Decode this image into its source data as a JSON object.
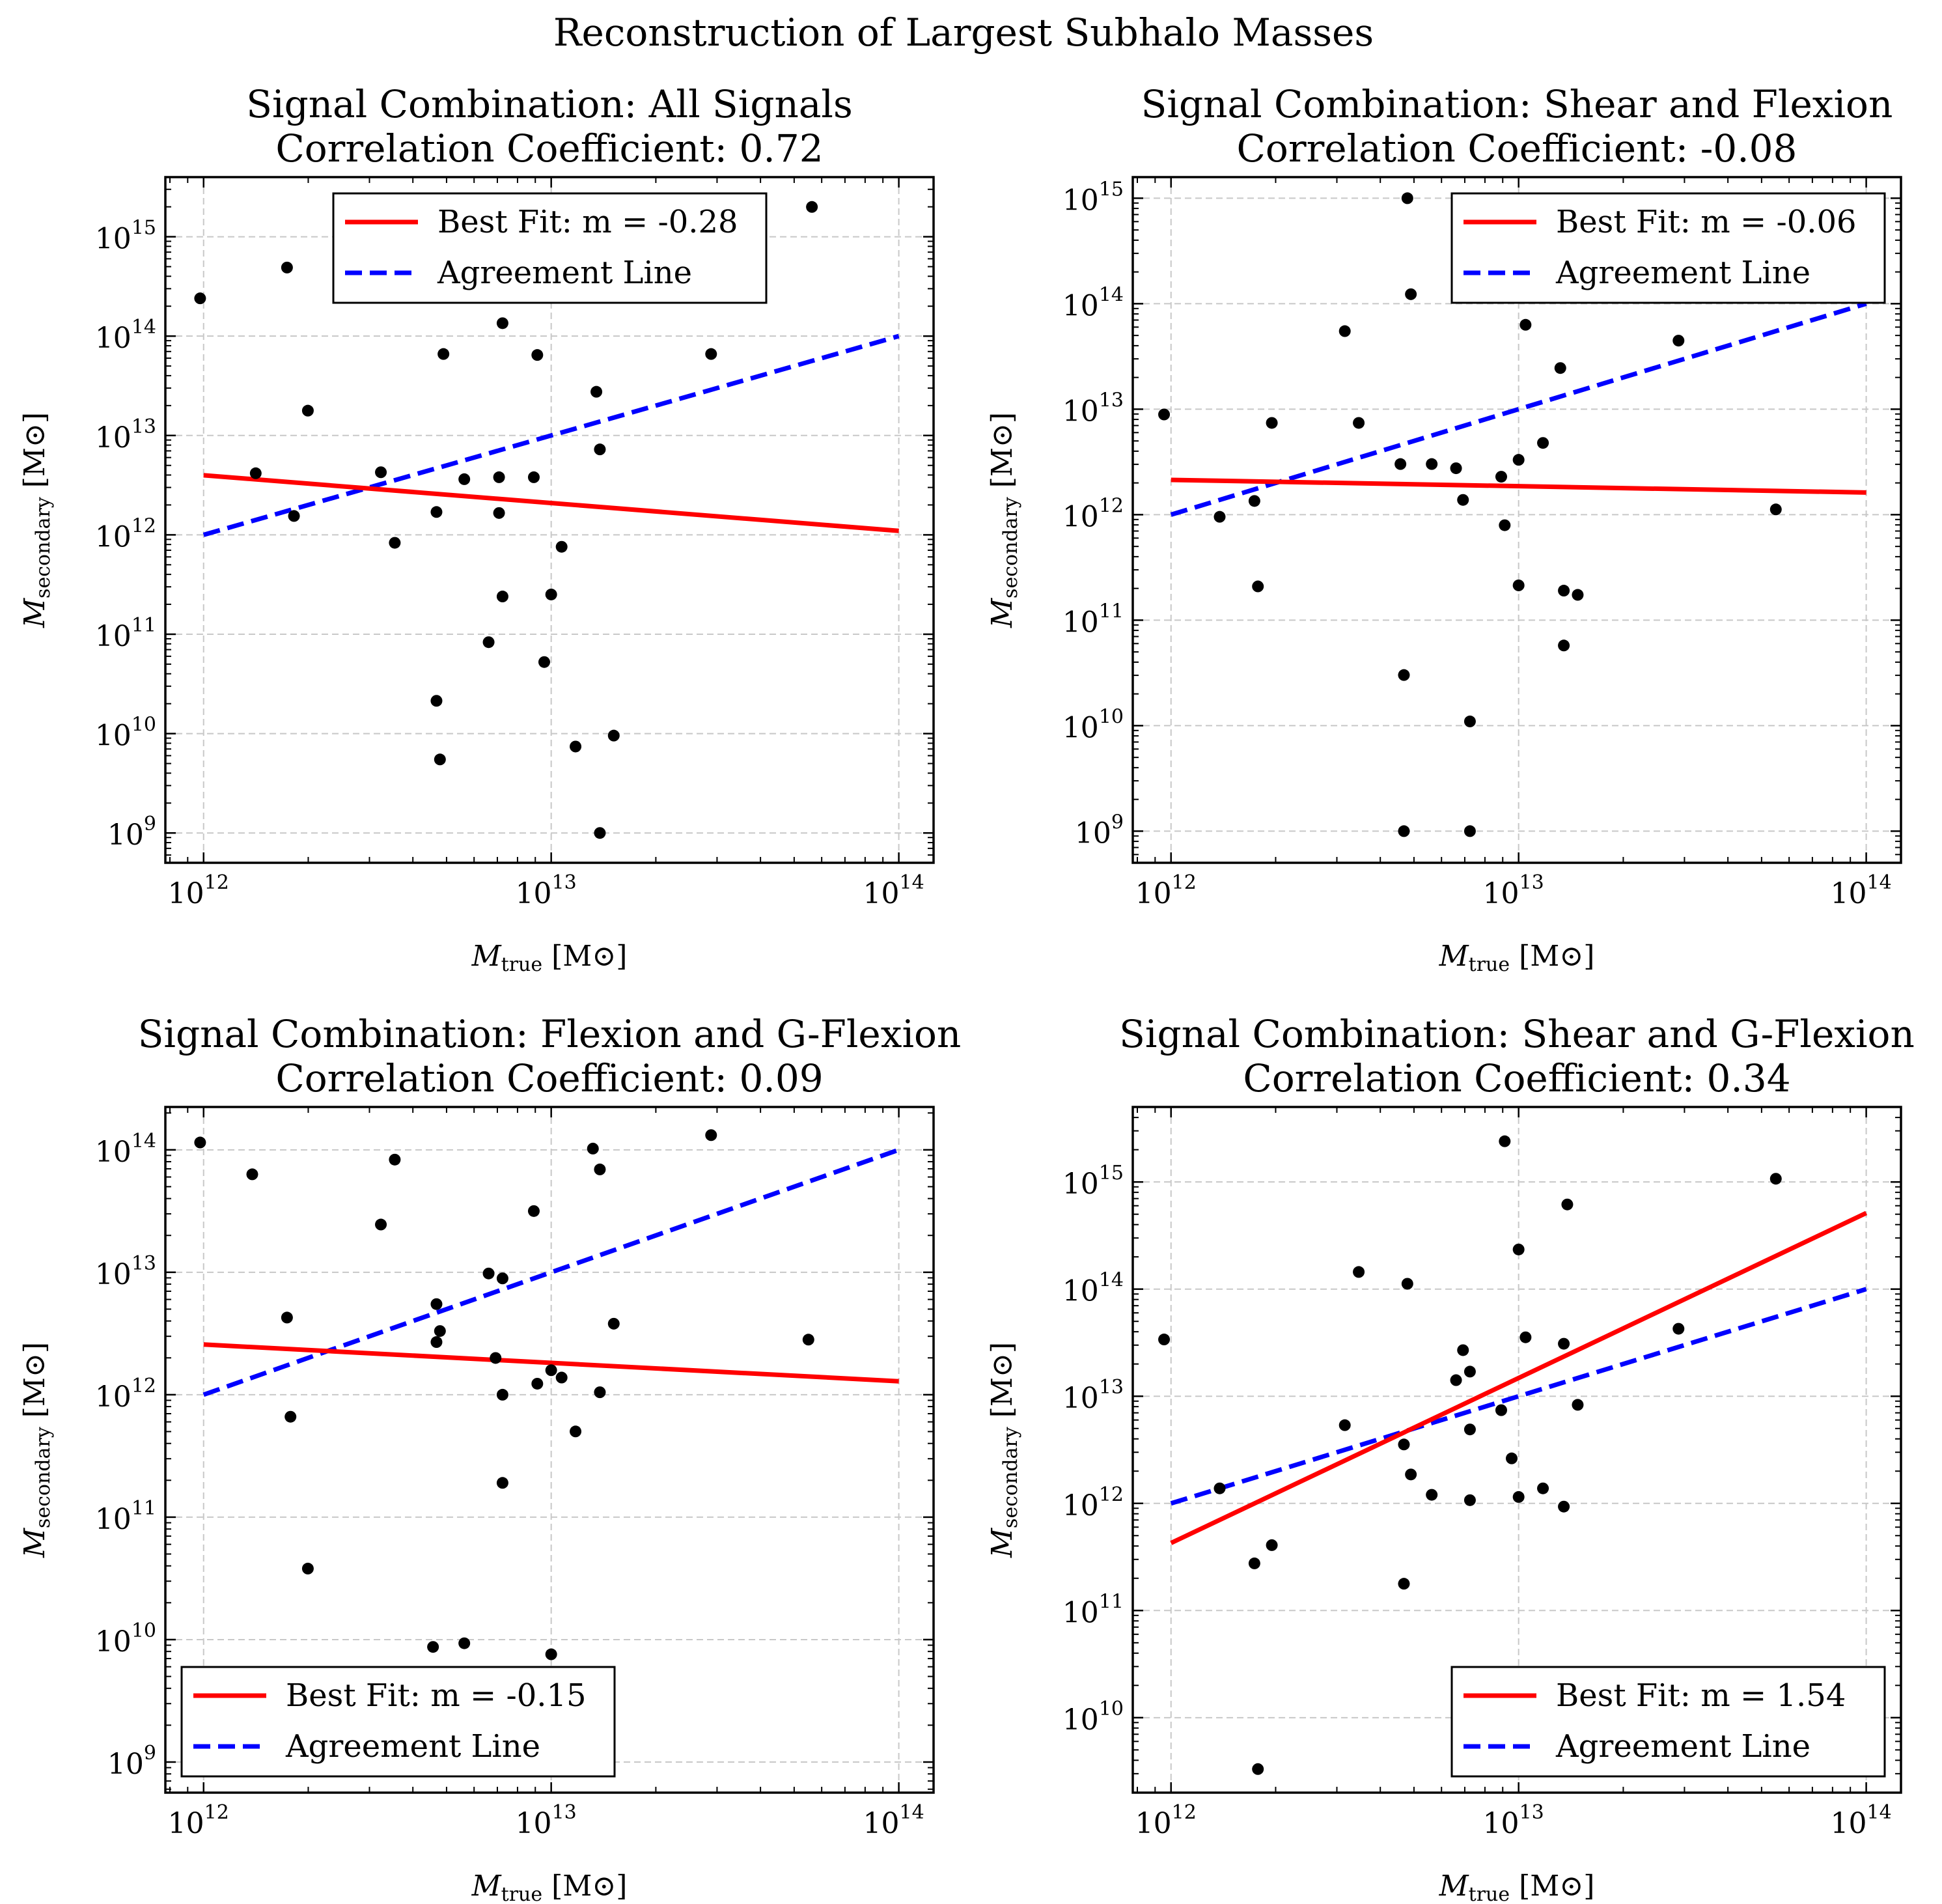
{
  "figure_title": "Reconstruction of Largest Subhalo Masses",
  "chart_data": [
    {
      "type": "scatter",
      "title_line1": "Signal Combination: All Signals",
      "title_line2": "Correlation Coefficient: 0.72",
      "xlabel_main": "M",
      "xlabel_sub": "true",
      "xlabel_unit": "[M⊙]",
      "ylabel_main": "M",
      "ylabel_sub": "secondary",
      "ylabel_unit": "[M⊙]",
      "xscale": "log",
      "yscale": "log",
      "xlim_log10": [
        11.89,
        14.1
      ],
      "ylim_log10": [
        8.7,
        15.6
      ],
      "xticks": [
        12,
        13,
        14
      ],
      "yticks": [
        9,
        10,
        11,
        12,
        13,
        14,
        15
      ],
      "legend_location": "upper center",
      "legend": [
        {
          "label": "Best Fit: m = -0.28",
          "style": "solid",
          "color": "#ff0000"
        },
        {
          "label": "Agreement Line",
          "style": "dashed",
          "color": "#0000ff"
        }
      ],
      "fit_line_log10": [
        [
          12,
          12.6
        ],
        [
          14,
          12.04
        ]
      ],
      "agreement_line_log10": [
        [
          12,
          12
        ],
        [
          14,
          14
        ]
      ],
      "points_log10": [
        [
          11.99,
          14.38
        ],
        [
          12.15,
          12.62
        ],
        [
          12.24,
          14.69
        ],
        [
          12.26,
          12.19
        ],
        [
          12.3,
          13.25
        ],
        [
          12.51,
          12.63
        ],
        [
          12.55,
          11.92
        ],
        [
          12.67,
          12.23
        ],
        [
          12.67,
          10.33
        ],
        [
          12.68,
          9.74
        ],
        [
          12.69,
          13.82
        ],
        [
          12.75,
          12.56
        ],
        [
          12.82,
          10.92
        ],
        [
          12.85,
          12.22
        ],
        [
          12.85,
          12.58
        ],
        [
          12.86,
          14.13
        ],
        [
          12.86,
          11.38
        ],
        [
          12.95,
          12.58
        ],
        [
          12.96,
          13.81
        ],
        [
          12.98,
          10.72
        ],
        [
          13.0,
          11.4
        ],
        [
          13.03,
          11.88
        ],
        [
          13.07,
          9.87
        ],
        [
          13.13,
          13.44
        ],
        [
          13.14,
          12.86
        ],
        [
          13.14,
          9.0
        ],
        [
          13.18,
          9.98
        ],
        [
          13.46,
          13.82
        ],
        [
          13.75,
          15.3
        ]
      ]
    },
    {
      "type": "scatter",
      "title_line1": "Signal Combination: Shear and Flexion",
      "title_line2": "Correlation Coefficient: -0.08",
      "xlabel_main": "M",
      "xlabel_sub": "true",
      "xlabel_unit": "[M⊙]",
      "ylabel_main": "M",
      "ylabel_sub": "secondary",
      "ylabel_unit": "[M⊙]",
      "xscale": "log",
      "yscale": "log",
      "xlim_log10": [
        11.89,
        14.1
      ],
      "ylim_log10": [
        8.7,
        15.2
      ],
      "xticks": [
        12,
        13,
        14
      ],
      "yticks": [
        9,
        10,
        11,
        12,
        13,
        14,
        15
      ],
      "legend_location": "upper right",
      "legend": [
        {
          "label": "Best Fit: m = -0.06",
          "style": "solid",
          "color": "#ff0000"
        },
        {
          "label": "Agreement Line",
          "style": "dashed",
          "color": "#0000ff"
        }
      ],
      "fit_line_log10": [
        [
          12,
          12.33
        ],
        [
          14,
          12.21
        ]
      ],
      "agreement_line_log10": [
        [
          12,
          12
        ],
        [
          14,
          14
        ]
      ],
      "points_log10": [
        [
          11.98,
          12.95
        ],
        [
          12.14,
          11.98
        ],
        [
          12.24,
          12.13
        ],
        [
          12.25,
          11.32
        ],
        [
          12.29,
          12.87
        ],
        [
          12.5,
          13.74
        ],
        [
          12.54,
          12.87
        ],
        [
          12.66,
          12.48
        ],
        [
          12.67,
          10.48
        ],
        [
          12.67,
          9.0
        ],
        [
          12.68,
          15.0
        ],
        [
          12.69,
          14.09
        ],
        [
          12.75,
          12.48
        ],
        [
          12.82,
          12.44
        ],
        [
          12.84,
          12.14
        ],
        [
          12.86,
          14.08
        ],
        [
          12.86,
          10.04
        ],
        [
          12.86,
          9.0
        ],
        [
          12.95,
          12.36
        ],
        [
          12.96,
          11.9
        ],
        [
          13.0,
          12.52
        ],
        [
          13.0,
          11.33
        ],
        [
          13.02,
          13.8
        ],
        [
          13.07,
          12.68
        ],
        [
          13.12,
          13.39
        ],
        [
          13.13,
          11.28
        ],
        [
          13.13,
          10.76
        ],
        [
          13.17,
          11.24
        ],
        [
          13.46,
          13.65
        ],
        [
          13.74,
          12.05
        ]
      ]
    },
    {
      "type": "scatter",
      "title_line1": "Signal Combination: Flexion and G-Flexion",
      "title_line2": "Correlation Coefficient: 0.09",
      "xlabel_main": "M",
      "xlabel_sub": "true",
      "xlabel_unit": "[M⊙]",
      "ylabel_main": "M",
      "ylabel_sub": "secondary",
      "ylabel_unit": "[M⊙]",
      "xscale": "log",
      "yscale": "log",
      "xlim_log10": [
        11.89,
        14.1
      ],
      "ylim_log10": [
        8.75,
        14.35
      ],
      "xticks": [
        12,
        13,
        14
      ],
      "yticks": [
        9,
        10,
        11,
        12,
        13,
        14
      ],
      "legend_location": "lower left",
      "legend": [
        {
          "label": "Best Fit: m = -0.15",
          "style": "solid",
          "color": "#ff0000"
        },
        {
          "label": "Agreement Line",
          "style": "dashed",
          "color": "#0000ff"
        }
      ],
      "fit_line_log10": [
        [
          12,
          12.41
        ],
        [
          14,
          12.11
        ]
      ],
      "agreement_line_log10": [
        [
          12,
          12
        ],
        [
          14,
          14
        ]
      ],
      "points_log10": [
        [
          11.99,
          14.06
        ],
        [
          12.14,
          13.8
        ],
        [
          12.24,
          12.63
        ],
        [
          12.25,
          11.82
        ],
        [
          12.3,
          10.58
        ],
        [
          12.51,
          13.39
        ],
        [
          12.55,
          13.92
        ],
        [
          12.66,
          9.94
        ],
        [
          12.67,
          12.74
        ],
        [
          12.67,
          12.43
        ],
        [
          12.68,
          12.52
        ],
        [
          12.75,
          9.97
        ],
        [
          12.82,
          12.99
        ],
        [
          12.84,
          12.3
        ],
        [
          12.86,
          12.95
        ],
        [
          12.86,
          12.0
        ],
        [
          12.86,
          11.28
        ],
        [
          12.95,
          13.5
        ],
        [
          12.96,
          12.09
        ],
        [
          13.0,
          12.2
        ],
        [
          13.0,
          9.88
        ],
        [
          13.03,
          12.14
        ],
        [
          13.07,
          11.7
        ],
        [
          13.12,
          14.01
        ],
        [
          13.14,
          13.84
        ],
        [
          13.14,
          12.02
        ],
        [
          13.18,
          12.58
        ],
        [
          13.46,
          14.12
        ],
        [
          13.74,
          12.45
        ]
      ]
    },
    {
      "type": "scatter",
      "title_line1": "Signal Combination: Shear and G-Flexion",
      "title_line2": "Correlation Coefficient: 0.34",
      "xlabel_main": "M",
      "xlabel_sub": "true",
      "xlabel_unit": "[M⊙]",
      "ylabel_main": "M",
      "ylabel_sub": "secondary",
      "ylabel_unit": "[M⊙]",
      "xscale": "log",
      "yscale": "log",
      "xlim_log10": [
        11.89,
        14.1
      ],
      "ylim_log10": [
        9.3,
        15.7
      ],
      "xticks": [
        12,
        13,
        14
      ],
      "yticks": [
        10,
        11,
        12,
        13,
        14,
        15
      ],
      "legend_location": "lower right",
      "legend": [
        {
          "label": "Best Fit: m = 1.54",
          "style": "solid",
          "color": "#ff0000"
        },
        {
          "label": "Agreement Line",
          "style": "dashed",
          "color": "#0000ff"
        }
      ],
      "fit_line_log10": [
        [
          12,
          11.63
        ],
        [
          14,
          14.71
        ]
      ],
      "agreement_line_log10": [
        [
          12,
          12
        ],
        [
          14,
          14
        ]
      ],
      "points_log10": [
        [
          11.98,
          13.53
        ],
        [
          12.14,
          12.14
        ],
        [
          12.24,
          11.44
        ],
        [
          12.25,
          9.52
        ],
        [
          12.29,
          11.61
        ],
        [
          12.5,
          12.73
        ],
        [
          12.54,
          14.16
        ],
        [
          12.67,
          12.55
        ],
        [
          12.67,
          11.25
        ],
        [
          12.68,
          14.05
        ],
        [
          12.69,
          12.27
        ],
        [
          12.75,
          12.08
        ],
        [
          12.82,
          13.15
        ],
        [
          12.84,
          13.43
        ],
        [
          12.86,
          13.23
        ],
        [
          12.86,
          12.69
        ],
        [
          12.86,
          12.03
        ],
        [
          12.95,
          12.87
        ],
        [
          12.96,
          15.38
        ],
        [
          12.98,
          12.42
        ],
        [
          13.0,
          14.37
        ],
        [
          13.0,
          12.06
        ],
        [
          13.02,
          13.55
        ],
        [
          13.07,
          12.14
        ],
        [
          13.13,
          13.49
        ],
        [
          13.13,
          11.97
        ],
        [
          13.14,
          14.79
        ],
        [
          13.17,
          12.92
        ],
        [
          13.46,
          13.63
        ],
        [
          13.74,
          15.03
        ]
      ]
    }
  ]
}
